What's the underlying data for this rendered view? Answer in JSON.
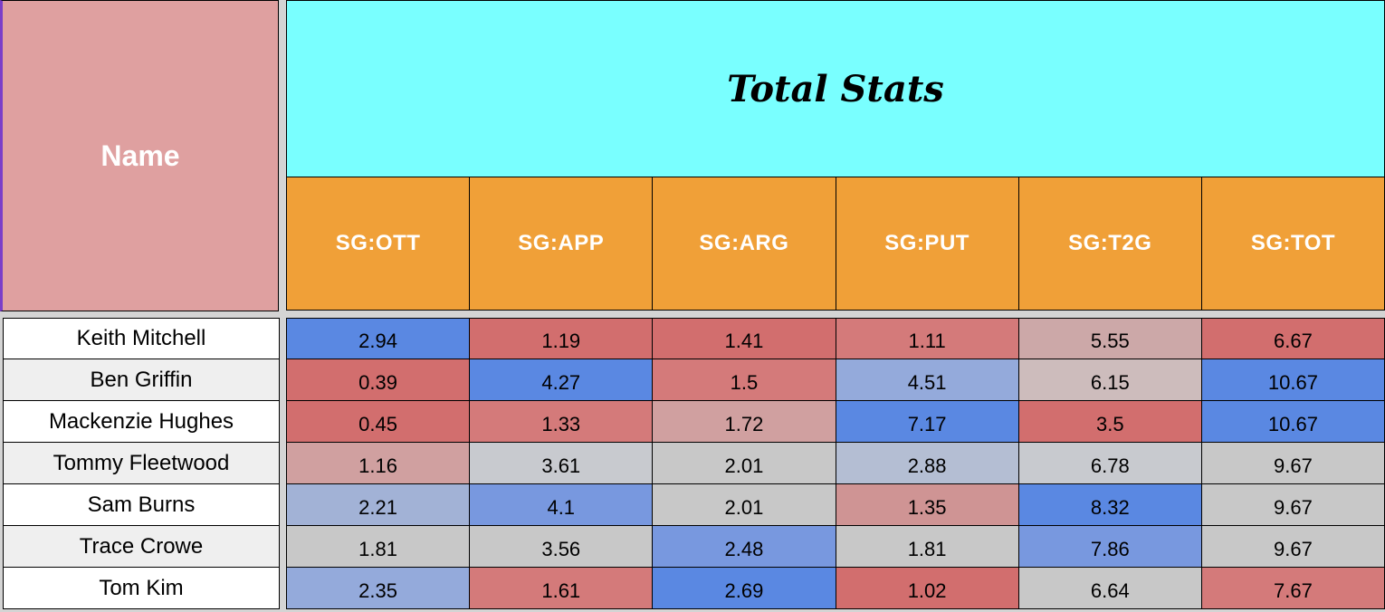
{
  "header": {
    "name_label": "Name",
    "title": "Total Stats",
    "columns": [
      "SG:OTT",
      "SG:APP",
      "SG:ARG",
      "SG:PUT",
      "SG:T2G",
      "SG:TOT"
    ]
  },
  "rows": [
    {
      "name": "Keith Mitchell",
      "values": [
        "2.94",
        "1.19",
        "1.41",
        "1.11",
        "5.55",
        "6.67"
      ]
    },
    {
      "name": "Ben Griffin",
      "values": [
        "0.39",
        "4.27",
        "1.5",
        "4.51",
        "6.15",
        "10.67"
      ]
    },
    {
      "name": "Mackenzie Hughes",
      "values": [
        "0.45",
        "1.33",
        "1.72",
        "7.17",
        "3.5",
        "10.67"
      ]
    },
    {
      "name": "Tommy Fleetwood",
      "values": [
        "1.16",
        "3.61",
        "2.01",
        "2.88",
        "6.78",
        "9.67"
      ]
    },
    {
      "name": "Sam Burns",
      "values": [
        "2.21",
        "4.1",
        "2.01",
        "1.35",
        "8.32",
        "9.67"
      ]
    },
    {
      "name": "Trace Crowe",
      "values": [
        "1.81",
        "3.56",
        "2.48",
        "1.81",
        "7.86",
        "9.67"
      ]
    },
    {
      "name": "Tom Kim",
      "values": [
        "2.35",
        "1.61",
        "2.69",
        "1.02",
        "6.64",
        "7.67"
      ]
    }
  ],
  "cell_colors": [
    [
      "#5a88e2",
      "#d26e6e",
      "#d26e6e",
      "#d47a7a",
      "#cca8a8",
      "#d26e6e"
    ],
    [
      "#d26e6e",
      "#5a88e2",
      "#d47a7a",
      "#94aadb",
      "#cdbcbc",
      "#5a88e2"
    ],
    [
      "#d26e6e",
      "#d47a7a",
      "#d0a0a0",
      "#5a88e2",
      "#d26e6e",
      "#5a88e2"
    ],
    [
      "#d0a0a0",
      "#c8cacf",
      "#c8c8c8",
      "#b4bed3",
      "#c8cacf",
      "#c8c8c8"
    ],
    [
      "#a2b2d6",
      "#7898df",
      "#c8c8c8",
      "#cf9494",
      "#5a88e2",
      "#c8c8c8"
    ],
    [
      "#c8c8c8",
      "#c8c8c8",
      "#7898df",
      "#c8c8c8",
      "#7898df",
      "#c8c8c8"
    ],
    [
      "#94aadb",
      "#d47a7a",
      "#5a88e2",
      "#d26e6e",
      "#c8c8c8",
      "#d47a7a"
    ]
  ],
  "colors": {
    "name_header_bg": "#dfa0a0",
    "title_bg": "#79ffff",
    "column_header_bg": "#f0a038",
    "high_blue": "#5a88e2",
    "low_red": "#d26e6e",
    "neutral_gray": "#c8c8c8"
  }
}
